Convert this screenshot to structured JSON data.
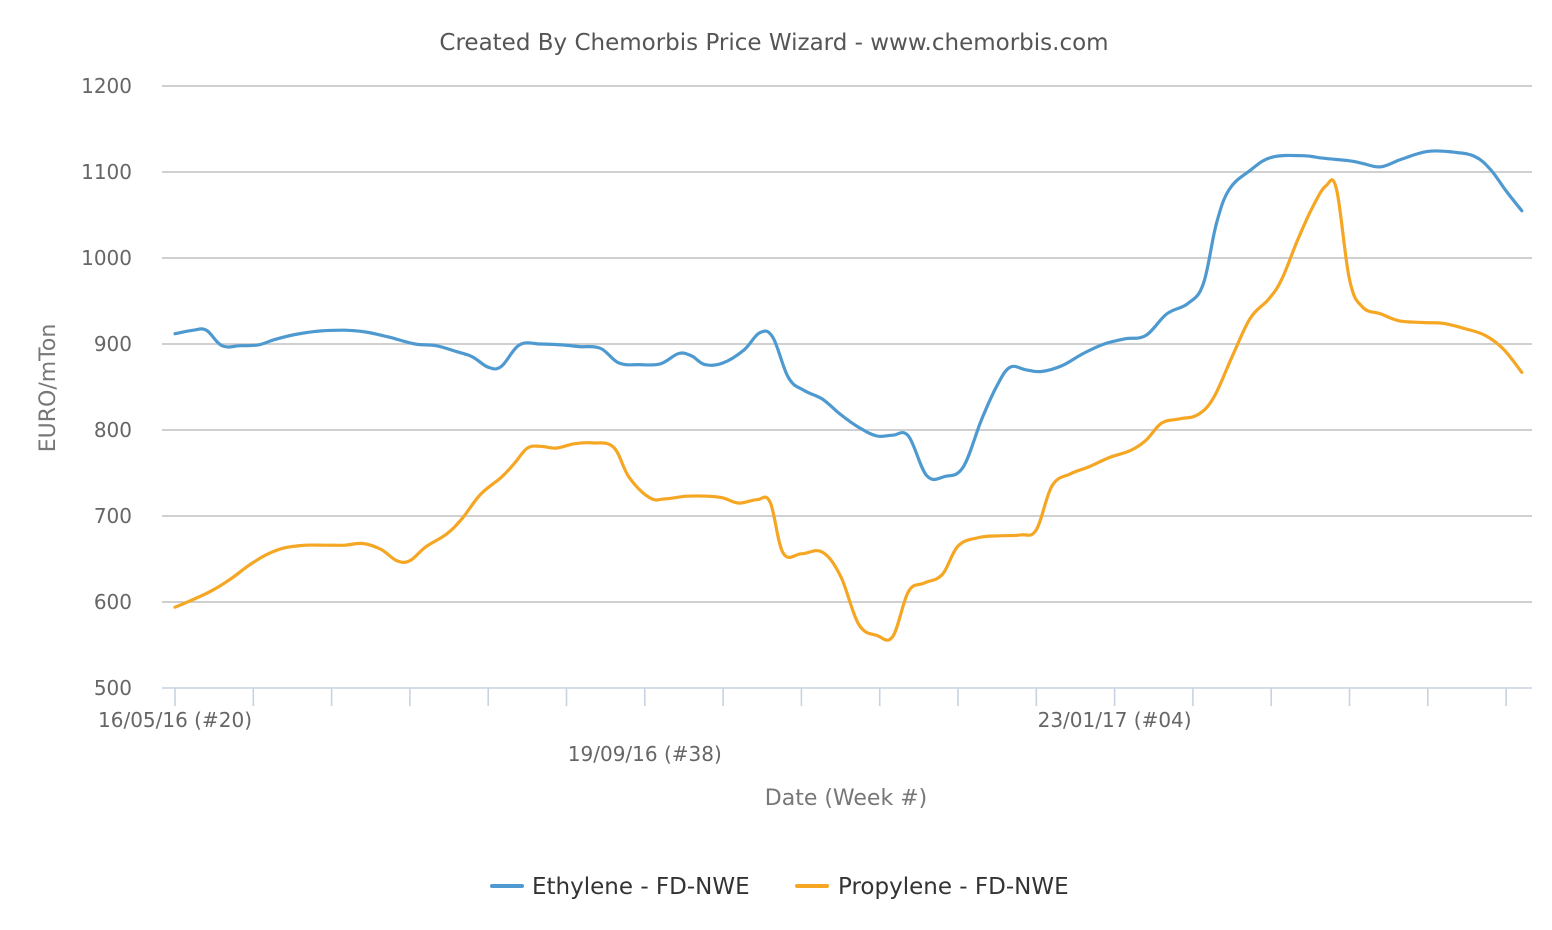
{
  "chart_data": {
    "type": "line",
    "title": "Created By Chemorbis Price Wizard - www.chemorbis.com",
    "xlabel": "Date (Week #)",
    "ylabel": "EURO/mTon",
    "ylim": [
      500,
      1200
    ],
    "yticks": [
      500,
      600,
      700,
      800,
      900,
      1000,
      1100,
      1200
    ],
    "grid": "horizontal",
    "legend": "bottom-center",
    "x_week_range": [
      0,
      52
    ],
    "x_tick_labels": [
      {
        "week": 0,
        "label": "16/05/16 (#20)"
      },
      {
        "week": 18,
        "label": "19/09/16 (#38)"
      },
      {
        "week": 36,
        "label": "23/01/17 (#04)"
      }
    ],
    "series": [
      {
        "name": "Ethylene - FD-NWE",
        "color": "#4e9ad0",
        "points": [
          [
            0,
            912
          ],
          [
            0.7,
            916
          ],
          [
            1.2,
            916
          ],
          [
            1.8,
            898
          ],
          [
            2.5,
            898
          ],
          [
            3.2,
            899
          ],
          [
            3.8,
            905
          ],
          [
            4.6,
            911
          ],
          [
            5.5,
            915
          ],
          [
            6.5,
            916
          ],
          [
            7.3,
            914
          ],
          [
            8.2,
            908
          ],
          [
            9.2,
            900
          ],
          [
            10,
            898
          ],
          [
            10.8,
            891
          ],
          [
            11.4,
            885
          ],
          [
            12,
            873
          ],
          [
            12.5,
            874
          ],
          [
            13.2,
            899
          ],
          [
            14,
            900
          ],
          [
            14.8,
            899
          ],
          [
            15.5,
            897
          ],
          [
            16.3,
            895
          ],
          [
            17,
            878
          ],
          [
            17.8,
            876
          ],
          [
            18.6,
            877
          ],
          [
            19.3,
            889
          ],
          [
            19.8,
            886
          ],
          [
            20.3,
            876
          ],
          [
            21,
            878
          ],
          [
            21.8,
            893
          ],
          [
            22.4,
            913
          ],
          [
            22.9,
            908
          ],
          [
            23.5,
            861
          ],
          [
            24.1,
            846
          ],
          [
            24.8,
            836
          ],
          [
            25.5,
            818
          ],
          [
            26.2,
            803
          ],
          [
            26.9,
            793
          ],
          [
            27.5,
            794
          ],
          [
            28.1,
            793
          ],
          [
            28.8,
            747
          ],
          [
            29.5,
            746
          ],
          [
            30.2,
            757
          ],
          [
            30.9,
            812
          ],
          [
            31.5,
            852
          ],
          [
            32,
            873
          ],
          [
            32.6,
            870
          ],
          [
            33.2,
            868
          ],
          [
            34,
            875
          ],
          [
            34.8,
            889
          ],
          [
            35.6,
            900
          ],
          [
            36.4,
            906
          ],
          [
            37.2,
            910
          ],
          [
            38,
            935
          ],
          [
            38.8,
            947
          ],
          [
            39.4,
            970
          ],
          [
            39.9,
            1040
          ],
          [
            40.4,
            1080
          ],
          [
            41.2,
            1102
          ],
          [
            42,
            1117
          ],
          [
            43.2,
            1119
          ],
          [
            44,
            1116
          ],
          [
            45,
            1113
          ],
          [
            45.5,
            1110
          ],
          [
            46.2,
            1106
          ],
          [
            47,
            1115
          ],
          [
            48,
            1124
          ],
          [
            49,
            1123
          ],
          [
            49.8,
            1118
          ],
          [
            50.4,
            1103
          ],
          [
            51,
            1078
          ],
          [
            51.6,
            1055
          ]
        ]
      },
      {
        "name": "Propylene - FD-NWE",
        "color": "#f5a623",
        "points": [
          [
            0,
            594
          ],
          [
            0.7,
            603
          ],
          [
            1.4,
            613
          ],
          [
            2.1,
            626
          ],
          [
            2.8,
            642
          ],
          [
            3.5,
            655
          ],
          [
            4.2,
            663
          ],
          [
            5,
            666
          ],
          [
            5.8,
            666
          ],
          [
            6.5,
            666
          ],
          [
            7.2,
            668
          ],
          [
            7.9,
            661
          ],
          [
            8.5,
            648
          ],
          [
            9,
            648
          ],
          [
            9.6,
            664
          ],
          [
            10.4,
            679
          ],
          [
            11,
            697
          ],
          [
            11.7,
            725
          ],
          [
            12.5,
            745
          ],
          [
            13,
            761
          ],
          [
            13.5,
            779
          ],
          [
            14,
            781
          ],
          [
            14.6,
            779
          ],
          [
            15.3,
            784
          ],
          [
            16,
            785
          ],
          [
            16.8,
            780
          ],
          [
            17.4,
            745
          ],
          [
            18.2,
            721
          ],
          [
            18.8,
            720
          ],
          [
            19.6,
            723
          ],
          [
            20.4,
            723
          ],
          [
            21,
            721
          ],
          [
            21.6,
            715
          ],
          [
            22.3,
            719
          ],
          [
            22.8,
            716
          ],
          [
            23.3,
            657
          ],
          [
            24,
            656
          ],
          [
            24.8,
            658
          ],
          [
            25.5,
            630
          ],
          [
            26.2,
            574
          ],
          [
            26.9,
            561
          ],
          [
            27.5,
            560
          ],
          [
            28.1,
            612
          ],
          [
            28.7,
            622
          ],
          [
            29.4,
            632
          ],
          [
            30,
            665
          ],
          [
            30.8,
            675
          ],
          [
            31.6,
            677
          ],
          [
            32.4,
            678
          ],
          [
            33,
            684
          ],
          [
            33.6,
            735
          ],
          [
            34.3,
            749
          ],
          [
            35,
            757
          ],
          [
            35.8,
            768
          ],
          [
            36.6,
            776
          ],
          [
            37.2,
            788
          ],
          [
            37.8,
            808
          ],
          [
            38.5,
            813
          ],
          [
            39.2,
            818
          ],
          [
            39.8,
            838
          ],
          [
            40.5,
            885
          ],
          [
            41.2,
            930
          ],
          [
            41.9,
            952
          ],
          [
            42.4,
            975
          ],
          [
            43,
            1020
          ],
          [
            43.6,
            1060
          ],
          [
            44.1,
            1084
          ],
          [
            44.5,
            1080
          ],
          [
            45,
            975
          ],
          [
            45.5,
            943
          ],
          [
            46.2,
            935
          ],
          [
            46.9,
            927
          ],
          [
            47.8,
            925
          ],
          [
            48.6,
            924
          ],
          [
            49.4,
            918
          ],
          [
            50.2,
            910
          ],
          [
            50.9,
            894
          ],
          [
            51.6,
            867
          ]
        ]
      }
    ]
  }
}
